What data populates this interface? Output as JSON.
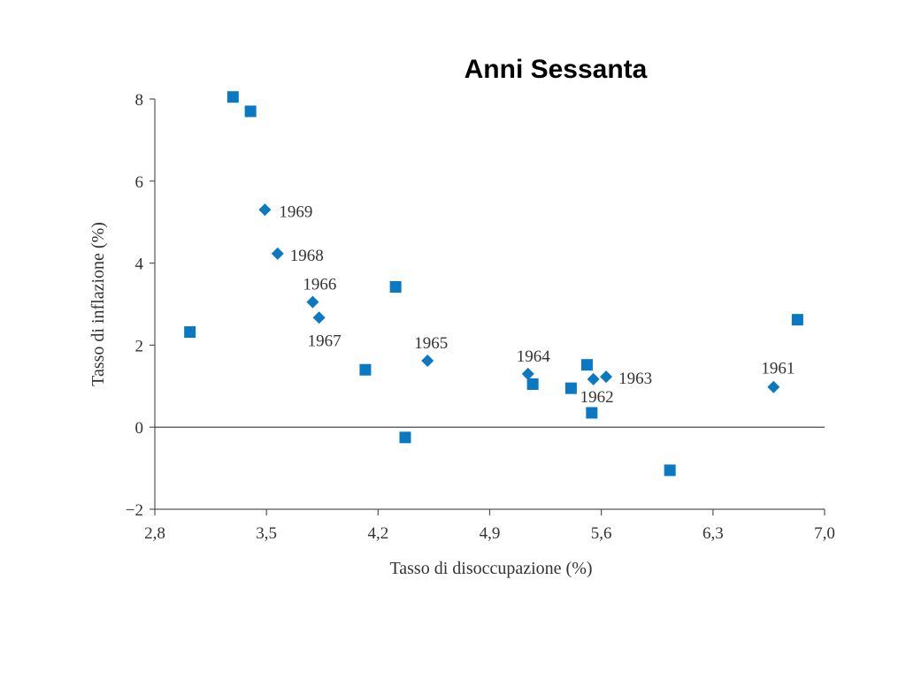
{
  "slide": {
    "title": "Anni Sessanta"
  },
  "chart_data": {
    "type": "scatter",
    "xlabel": "Tasso di disoccupazione (%)",
    "ylabel": "Tasso di inflazione (%)",
    "xlim": [
      2.8,
      7.0
    ],
    "ylim": [
      -2,
      8
    ],
    "x_ticks": [
      "2,8",
      "3,5",
      "4,2",
      "4,9",
      "5,6",
      "6,3",
      "7,0"
    ],
    "x_tick_values": [
      2.8,
      3.5,
      4.2,
      4.9,
      5.6,
      6.3,
      7.0
    ],
    "y_ticks": [
      "8",
      "6",
      "4",
      "2",
      "0",
      "−2"
    ],
    "y_tick_values": [
      8,
      6,
      4,
      2,
      0,
      -2
    ],
    "zero_line": true,
    "marker_color": "#0a79c2",
    "series": [
      {
        "marker": "diamond",
        "points": [
          {
            "x": 6.68,
            "y": 0.98,
            "label": "1961"
          },
          {
            "x": 5.55,
            "y": 1.17,
            "label": "1962"
          },
          {
            "x": 5.63,
            "y": 1.23,
            "label": "1963"
          },
          {
            "x": 5.14,
            "y": 1.3,
            "label": "1964"
          },
          {
            "x": 4.51,
            "y": 1.62,
            "label": "1965"
          },
          {
            "x": 3.79,
            "y": 3.05,
            "label": "1966"
          },
          {
            "x": 3.83,
            "y": 2.67,
            "label": "1967"
          },
          {
            "x": 3.57,
            "y": 4.23,
            "label": "1968"
          },
          {
            "x": 3.49,
            "y": 5.3,
            "label": "1969"
          }
        ]
      },
      {
        "marker": "square",
        "points": [
          {
            "x": 3.02,
            "y": 2.32
          },
          {
            "x": 3.29,
            "y": 8.05
          },
          {
            "x": 3.4,
            "y": 7.7
          },
          {
            "x": 4.12,
            "y": 1.4
          },
          {
            "x": 4.31,
            "y": 3.42
          },
          {
            "x": 4.37,
            "y": -0.25
          },
          {
            "x": 5.17,
            "y": 1.05
          },
          {
            "x": 5.41,
            "y": 0.95
          },
          {
            "x": 5.51,
            "y": 1.52
          },
          {
            "x": 5.54,
            "y": 0.35
          },
          {
            "x": 6.03,
            "y": -1.05
          },
          {
            "x": 6.83,
            "y": 2.62
          }
        ]
      }
    ]
  }
}
